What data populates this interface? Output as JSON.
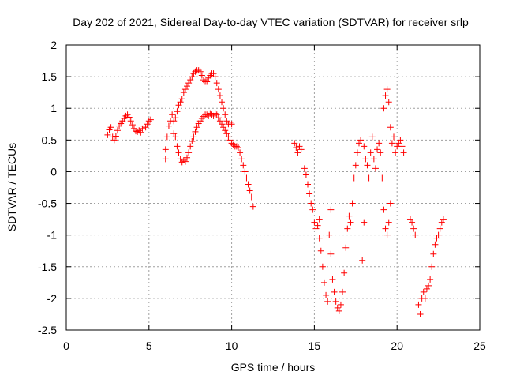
{
  "chart_data": {
    "type": "scatter",
    "title": "Day 202 of 2021, Sidereal Day-to-day VTEC variation (SDTVAR) for receiver srlp",
    "xlabel": "GPS time / hours",
    "ylabel": "SDTVAR / TECUs",
    "xlim": [
      0,
      25
    ],
    "ylim": [
      -2.5,
      2
    ],
    "x_ticks": [
      "0",
      "5",
      "10",
      "15",
      "20",
      "25"
    ],
    "y_ticks": [
      "2",
      "1.5",
      "1",
      "0.5",
      "0",
      "-0.5",
      "-1",
      "-1.5",
      "-2",
      "-2.5"
    ],
    "grid": true,
    "marker": "+",
    "marker_color": "#ff0000",
    "series": [
      {
        "points": [
          [
            2.5,
            0.58
          ],
          [
            2.6,
            0.66
          ],
          [
            2.7,
            0.7
          ],
          [
            2.8,
            0.55
          ],
          [
            2.9,
            0.5
          ],
          [
            3.0,
            0.56
          ],
          [
            3.1,
            0.65
          ],
          [
            3.2,
            0.72
          ],
          [
            3.3,
            0.76
          ],
          [
            3.4,
            0.8
          ],
          [
            3.5,
            0.84
          ],
          [
            3.6,
            0.88
          ],
          [
            3.7,
            0.9
          ],
          [
            3.8,
            0.86
          ],
          [
            3.9,
            0.8
          ],
          [
            4.0,
            0.74
          ],
          [
            4.1,
            0.68
          ],
          [
            4.2,
            0.64
          ],
          [
            4.3,
            0.63
          ],
          [
            4.4,
            0.65
          ],
          [
            4.5,
            0.62
          ],
          [
            4.6,
            0.68
          ],
          [
            4.7,
            0.72
          ],
          [
            4.8,
            0.7
          ],
          [
            4.9,
            0.75
          ],
          [
            5.0,
            0.8
          ],
          [
            5.1,
            0.82
          ],
          [
            6.0,
            0.2
          ],
          [
            6.0,
            0.35
          ],
          [
            6.1,
            0.55
          ],
          [
            6.2,
            0.72
          ],
          [
            6.3,
            0.8
          ],
          [
            6.4,
            0.9
          ],
          [
            6.5,
            0.6
          ],
          [
            6.6,
            0.55
          ],
          [
            6.7,
            0.4
          ],
          [
            6.8,
            0.3
          ],
          [
            6.9,
            0.2
          ],
          [
            7.0,
            0.15
          ],
          [
            7.1,
            0.18
          ],
          [
            7.2,
            0.16
          ],
          [
            7.3,
            0.22
          ],
          [
            7.4,
            0.3
          ],
          [
            7.5,
            0.4
          ],
          [
            7.6,
            0.48
          ],
          [
            7.7,
            0.55
          ],
          [
            7.8,
            0.63
          ],
          [
            7.9,
            0.7
          ],
          [
            8.0,
            0.76
          ],
          [
            8.1,
            0.8
          ],
          [
            8.2,
            0.84
          ],
          [
            8.3,
            0.87
          ],
          [
            8.4,
            0.9
          ],
          [
            8.5,
            0.9
          ],
          [
            8.6,
            0.88
          ],
          [
            8.7,
            0.92
          ],
          [
            8.8,
            0.9
          ],
          [
            8.9,
            0.88
          ],
          [
            9.0,
            0.92
          ],
          [
            9.1,
            0.9
          ],
          [
            9.2,
            0.85
          ],
          [
            9.3,
            0.8
          ],
          [
            9.4,
            0.75
          ],
          [
            9.5,
            0.7
          ],
          [
            9.6,
            0.65
          ],
          [
            9.7,
            0.6
          ],
          [
            9.8,
            0.55
          ],
          [
            9.9,
            0.5
          ],
          [
            10.0,
            0.45
          ],
          [
            10.1,
            0.42
          ],
          [
            10.2,
            0.4
          ],
          [
            10.3,
            0.4
          ],
          [
            10.4,
            0.38
          ],
          [
            10.5,
            0.3
          ],
          [
            10.6,
            0.2
          ],
          [
            10.7,
            0.1
          ],
          [
            10.8,
            0.0
          ],
          [
            10.9,
            -0.1
          ],
          [
            11.0,
            -0.2
          ],
          [
            11.1,
            -0.3
          ],
          [
            11.2,
            -0.4
          ],
          [
            11.3,
            -0.55
          ],
          [
            6.5,
            0.8
          ],
          [
            6.6,
            0.85
          ],
          [
            6.7,
            0.95
          ],
          [
            6.8,
            1.05
          ],
          [
            6.9,
            1.1
          ],
          [
            7.0,
            1.15
          ],
          [
            7.1,
            1.25
          ],
          [
            7.2,
            1.3
          ],
          [
            7.3,
            1.35
          ],
          [
            7.4,
            1.4
          ],
          [
            7.5,
            1.45
          ],
          [
            7.6,
            1.5
          ],
          [
            7.7,
            1.55
          ],
          [
            7.8,
            1.58
          ],
          [
            7.9,
            1.6
          ],
          [
            8.0,
            1.6
          ],
          [
            8.1,
            1.58
          ],
          [
            8.2,
            1.52
          ],
          [
            8.3,
            1.45
          ],
          [
            8.4,
            1.42
          ],
          [
            8.5,
            1.42
          ],
          [
            8.6,
            1.48
          ],
          [
            8.7,
            1.52
          ],
          [
            8.8,
            1.55
          ],
          [
            8.9,
            1.55
          ],
          [
            9.0,
            1.5
          ],
          [
            9.1,
            1.4
          ],
          [
            9.2,
            1.3
          ],
          [
            9.3,
            1.2
          ],
          [
            9.4,
            1.1
          ],
          [
            9.5,
            1.0
          ],
          [
            9.6,
            0.9
          ],
          [
            9.7,
            0.8
          ],
          [
            9.8,
            0.75
          ],
          [
            9.9,
            0.78
          ],
          [
            10.0,
            0.75
          ],
          [
            13.8,
            0.45
          ],
          [
            13.9,
            0.38
          ],
          [
            14.0,
            0.3
          ],
          [
            14.1,
            0.4
          ],
          [
            14.2,
            0.35
          ],
          [
            14.4,
            0.05
          ],
          [
            14.5,
            -0.05
          ],
          [
            14.6,
            -0.2
          ],
          [
            14.7,
            -0.35
          ],
          [
            14.8,
            -0.5
          ],
          [
            14.9,
            -0.6
          ],
          [
            15.0,
            -0.8
          ],
          [
            15.1,
            -0.9
          ],
          [
            15.2,
            -0.85
          ],
          [
            15.3,
            -0.75
          ],
          [
            15.3,
            -1.05
          ],
          [
            15.4,
            -1.25
          ],
          [
            15.5,
            -1.5
          ],
          [
            15.6,
            -1.75
          ],
          [
            15.7,
            -1.95
          ],
          [
            15.8,
            -2.05
          ],
          [
            15.9,
            -1.0
          ],
          [
            16.0,
            -1.3
          ],
          [
            16.0,
            -0.6
          ],
          [
            16.1,
            -1.7
          ],
          [
            16.2,
            -1.9
          ],
          [
            16.3,
            -2.05
          ],
          [
            16.4,
            -2.15
          ],
          [
            16.5,
            -2.2
          ],
          [
            16.6,
            -2.1
          ],
          [
            16.7,
            -1.9
          ],
          [
            16.8,
            -1.6
          ],
          [
            16.9,
            -1.2
          ],
          [
            17.0,
            -0.9
          ],
          [
            17.1,
            -0.7
          ],
          [
            17.2,
            -0.8
          ],
          [
            17.3,
            -0.5
          ],
          [
            17.4,
            -0.1
          ],
          [
            17.5,
            0.1
          ],
          [
            17.6,
            0.3
          ],
          [
            17.7,
            0.45
          ],
          [
            17.8,
            0.5
          ],
          [
            17.9,
            -1.4
          ],
          [
            18.0,
            -0.8
          ],
          [
            18.0,
            0.4
          ],
          [
            18.1,
            0.2
          ],
          [
            18.2,
            0.1
          ],
          [
            18.3,
            -0.1
          ],
          [
            18.4,
            0.3
          ],
          [
            18.5,
            0.55
          ],
          [
            18.6,
            0.2
          ],
          [
            18.7,
            0.05
          ],
          [
            18.8,
            0.35
          ],
          [
            18.9,
            0.45
          ],
          [
            19.0,
            0.3
          ],
          [
            19.1,
            -0.1
          ],
          [
            19.2,
            -0.6
          ],
          [
            19.3,
            -0.9
          ],
          [
            19.4,
            -1.0
          ],
          [
            19.5,
            -0.8
          ],
          [
            19.6,
            -0.5
          ],
          [
            19.2,
            1.0
          ],
          [
            19.3,
            1.2
          ],
          [
            19.4,
            1.3
          ],
          [
            19.5,
            1.1
          ],
          [
            19.6,
            0.7
          ],
          [
            19.7,
            0.45
          ],
          [
            19.8,
            0.55
          ],
          [
            19.9,
            0.3
          ],
          [
            20.0,
            0.4
          ],
          [
            20.1,
            0.45
          ],
          [
            20.2,
            0.5
          ],
          [
            20.3,
            0.4
          ],
          [
            20.4,
            0.3
          ],
          [
            20.8,
            -0.75
          ],
          [
            20.9,
            -0.8
          ],
          [
            21.0,
            -0.9
          ],
          [
            21.1,
            -1.0
          ],
          [
            21.3,
            -2.1
          ],
          [
            21.4,
            -2.25
          ],
          [
            21.5,
            -2.0
          ],
          [
            21.6,
            -1.9
          ],
          [
            21.7,
            -2.0
          ],
          [
            21.8,
            -1.85
          ],
          [
            21.9,
            -1.8
          ],
          [
            22.0,
            -1.7
          ],
          [
            22.1,
            -1.5
          ],
          [
            22.2,
            -1.3
          ],
          [
            22.3,
            -1.15
          ],
          [
            22.4,
            -1.05
          ],
          [
            22.5,
            -1.0
          ],
          [
            22.6,
            -0.9
          ],
          [
            22.7,
            -0.8
          ],
          [
            22.8,
            -0.75
          ]
        ]
      }
    ]
  }
}
